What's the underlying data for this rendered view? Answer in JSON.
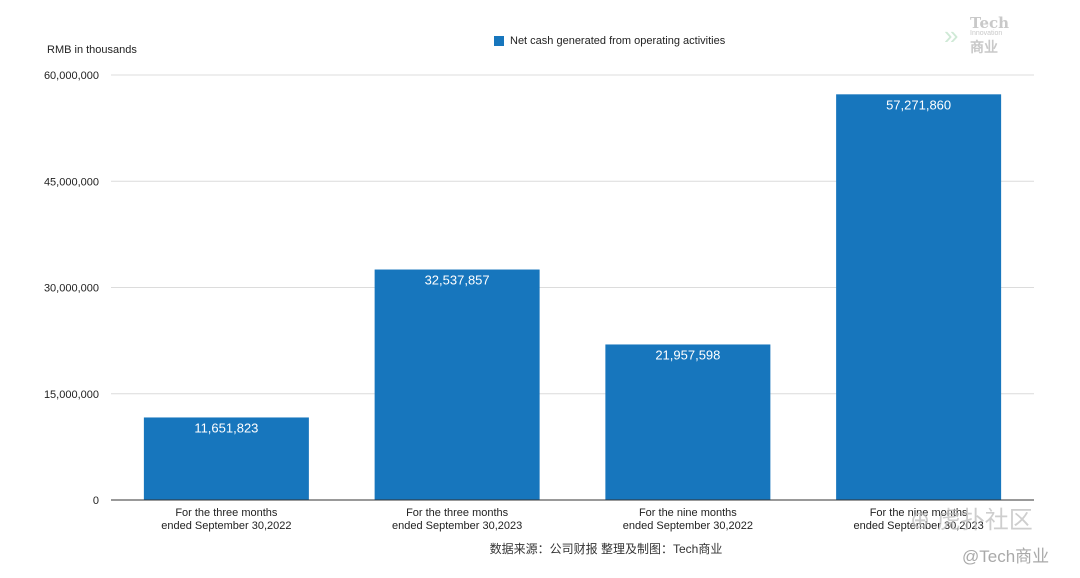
{
  "unit_label": "RMB in thousands",
  "source_note": "数据来源：公司财报 整理及制图：Tech商业",
  "watermarks": {
    "logo_tech": "Tech",
    "logo_innovation": "Innovation",
    "logo_biz": "商业",
    "community": "⊕ 虎扑社区",
    "handle": "@Tech商业"
  },
  "chart_data": {
    "type": "bar",
    "title": "",
    "xlabel": "",
    "ylabel": "RMB in thousands",
    "categories": [
      [
        "For the three months",
        "ended September 30,2022"
      ],
      [
        "For the three months",
        "ended September 30,2023"
      ],
      [
        "For the nine months",
        "ended September 30,2022"
      ],
      [
        "For the nine months",
        "ended September 30,2023"
      ]
    ],
    "series": [
      {
        "name": "Net cash generated from operating activities",
        "color": "#1776bd",
        "values": [
          11651823,
          32537857,
          21957598,
          57271860
        ],
        "labels": [
          "11,651,823",
          "32,537,857",
          "21,957,598",
          "57,271,860"
        ]
      }
    ],
    "ylim": [
      0,
      60000000
    ],
    "yticks": [
      0,
      15000000,
      30000000,
      45000000,
      60000000
    ],
    "ytick_labels": [
      "0",
      "15,000,000",
      "30,000,000",
      "45,000,000",
      "60,000,000"
    ],
    "grid": true,
    "legend_position": "top-center"
  }
}
